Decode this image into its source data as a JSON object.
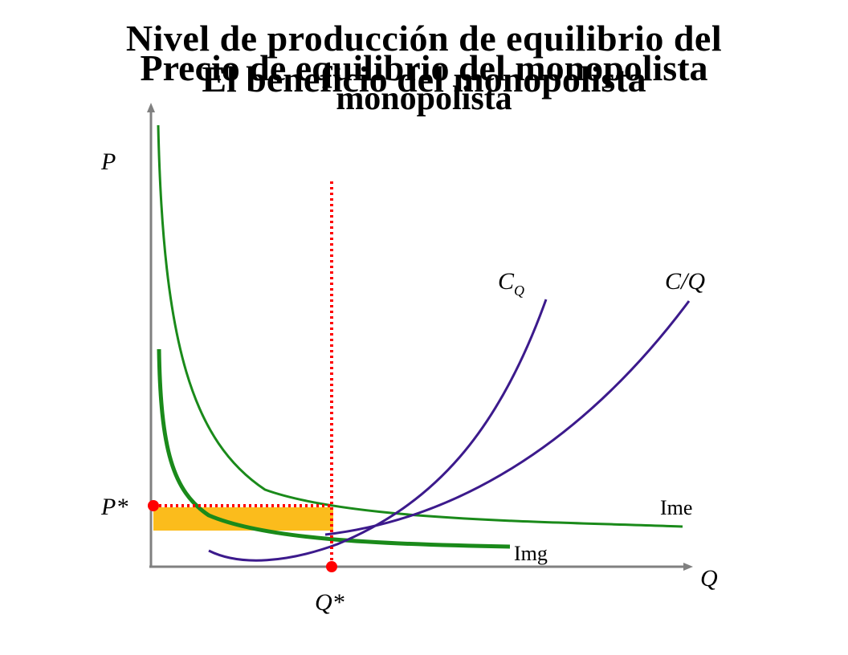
{
  "titles": {
    "line1": "Nivel de producción de equilibrio del",
    "line2": "Precio de equilibrio del monopolista",
    "line3": "El beneficio del monopolista",
    "line4": "monopolista"
  },
  "labels": {
    "p_axis": "P",
    "q_axis": "Q",
    "p_star": "P*",
    "q_star": "Q*",
    "cq_main": "C",
    "cq_sub": "Q",
    "cq_avg": "C/Q",
    "ime": "Ime",
    "img": "Img"
  },
  "colors": {
    "axis": "#808080",
    "revenue_curves": "#1a8a1a",
    "cost_curves": "#3c1a8c",
    "equilibrium_lines": "#ff0000",
    "profit_area": "#fbbc1c"
  }
}
